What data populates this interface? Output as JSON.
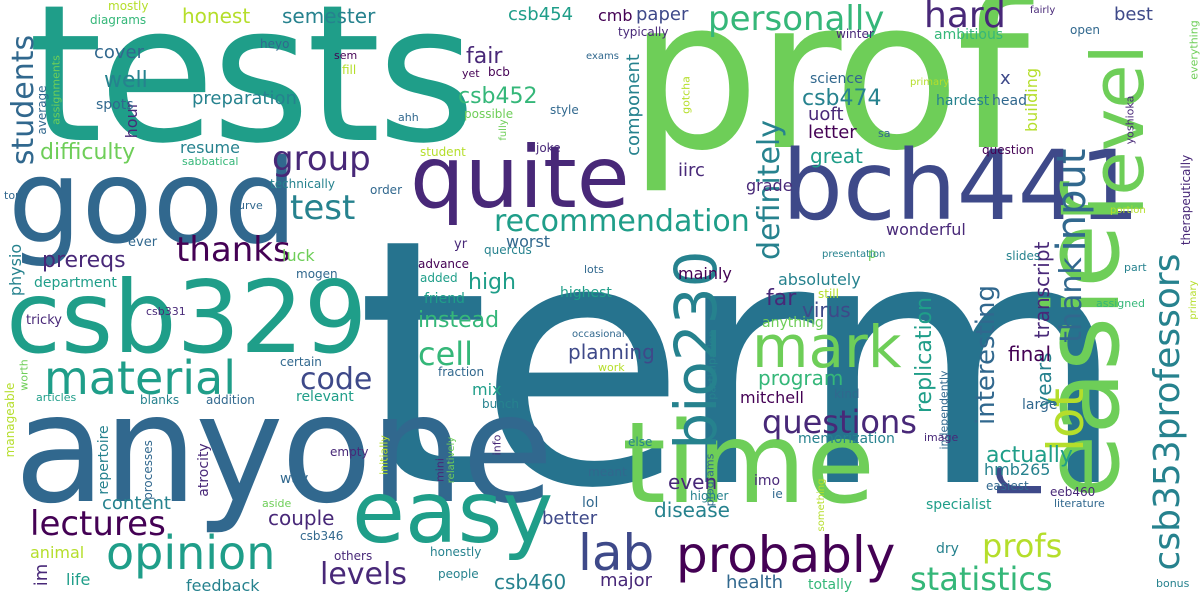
{
  "colors": {
    "background": "#ffffff",
    "palette": [
      "#440154",
      "#482878",
      "#3e4989",
      "#31688e",
      "#26828e",
      "#1f9e89",
      "#35b779",
      "#6ece58",
      "#b5de2b",
      "#fde725"
    ]
  },
  "words": {
    "term": "term",
    "tests": "tests",
    "prof": "prof",
    "anyone": "anyone",
    "good": "good",
    "quite": "quite",
    "bch441": "bch441",
    "csb329": "csb329",
    "easier": "easier",
    "level": "level",
    "time": "time",
    "easy": "easy",
    "mark": "mark",
    "opinion": "opinion",
    "probably": "probably",
    "material": "material",
    "lab": "lab",
    "bio230": "bio230",
    "csb353professors": "csb353professors",
    "lot": "lot",
    "r": "r",
    "lectures": "lectures",
    "thanks": "thanks",
    "group": "group",
    "recommendation": "recommendation",
    "questions": "questions",
    "statistics": "statistics",
    "personally": "personally",
    "input": "input",
    "hard": "hard",
    "test": "test",
    "code": "code",
    "cell": "cell",
    "levels": "levels",
    "profs": "profs",
    "students": "students",
    "difficulty": "difficulty",
    "prereqs": "prereqs",
    "csb474": "csb474",
    "csb452": "csb452",
    "csb454": "csb454",
    "definitely": "definitely",
    "fair": "fair",
    "thank": "thank",
    "interesting": "interesting",
    "replication": "replication",
    "virus": "virus",
    "planning": "planning",
    "program": "program",
    "instead": "instead",
    "high": "high",
    "far": "far",
    "great": "great",
    "actually": "actually",
    "final": "final",
    "even": "even",
    "disease": "disease",
    "csb460": "csb460",
    "health": "health",
    "major": "major",
    "couple": "couple",
    "content": "content",
    "better": "better",
    "transcript": "transcript",
    "years": "years",
    "hmb265": "hmb265",
    "semester": "semester",
    "honest": "honest",
    "paper": "paper",
    "cmb": "cmb",
    "preparation": "preparation",
    "well": "well",
    "cover": "cover",
    "resume": "resume",
    "uoft": "uoft",
    "letter": "letter",
    "component": "component",
    "grade": "grade",
    "iirc": "iirc",
    "best": "best",
    "ambitious": "ambitious",
    "x": "x",
    "building": "building",
    "hardest": "hardest",
    "head": "head",
    "science": "science",
    "mainly": "mainly",
    "worst": "worst",
    "wonderful": "wonderful",
    "absolutely": "absolutely",
    "anything": "anything",
    "mitchell": "mitchell",
    "memorization": "memorization",
    "specialist": "specialist",
    "large": "large",
    "dry": "dry",
    "luck": "luck",
    "department": "department",
    "physio": "physio",
    "im": "im",
    "animal": "animal",
    "life": "life",
    "feedback": "feedback",
    "way": "way",
    "friend": "friend",
    "highest": "highest",
    "mix": "mix",
    "relevant": "relevant",
    "lol": "lol",
    "totally": "totally",
    "hour": "hour",
    "spots": "spots",
    "average": "average",
    "repertoire": "repertoire",
    "atrocity": "atrocity",
    "processes": "processes",
    "tricky": "tricky",
    "sabbatical": "sabbatical",
    "technically": "technically",
    "order": "order",
    "curve": "curve",
    "ever": "ever",
    "mogen": "mogen",
    "advance": "advance",
    "quercus": "quercus",
    "yr": "yr",
    "added": "added",
    "lots": "lots",
    "occasional": "occasional",
    "participation": "participation",
    "work": "work",
    "fraction": "fraction",
    "certain": "certain",
    "bunch": "bunch",
    "blanks": "blanks",
    "addition": "addition",
    "articles": "articles",
    "worth": "worth",
    "manageable": "manageable",
    "initially": "initially",
    "relatively": "relatively",
    "mini": "mini",
    "info": "info",
    "empty": "empty",
    "aside": "aside",
    "csb346": "csb346",
    "others": "others",
    "honestly": "honestly",
    "people": "people",
    "else": "else",
    "meant": "meant",
    "higher": "higher",
    "programs": "programs",
    "imo": "imo",
    "ie": "ie",
    "something": "something",
    "literature": "literature",
    "eeb460": "eeb460",
    "easiest": "easiest",
    "independently": "independently",
    "image": "image",
    "kind": "kind",
    "still": "still",
    "p": "p",
    "presentation": "presentation",
    "question": "question",
    "slides": "slides",
    "portion": "portion",
    "part": "part",
    "assigned": "assigned",
    "bonus": "bonus",
    "therapeutically": "therapeutically",
    "everything": "everything",
    "yoshioka": "yoshioka",
    "fairly": "fairly",
    "open": "open",
    "winter": "winter",
    "primary": "primary",
    "sa": "sa",
    "typically": "typically",
    "exams": "exams",
    "gotcha": "gotcha",
    "possible": "possible",
    "style": "style",
    "fully": "fully",
    "joke": "joke",
    "student": "student",
    "ahh": "ahh",
    "yet": "yet",
    "bcb": "bcb",
    "sem": "sem",
    "fill": "fill",
    "heyo": "heyo",
    "diagrams": "diagrams",
    "mostly": "mostly",
    "assignments": "assignments",
    "top": "top",
    "csb331": "csb331"
  }
}
